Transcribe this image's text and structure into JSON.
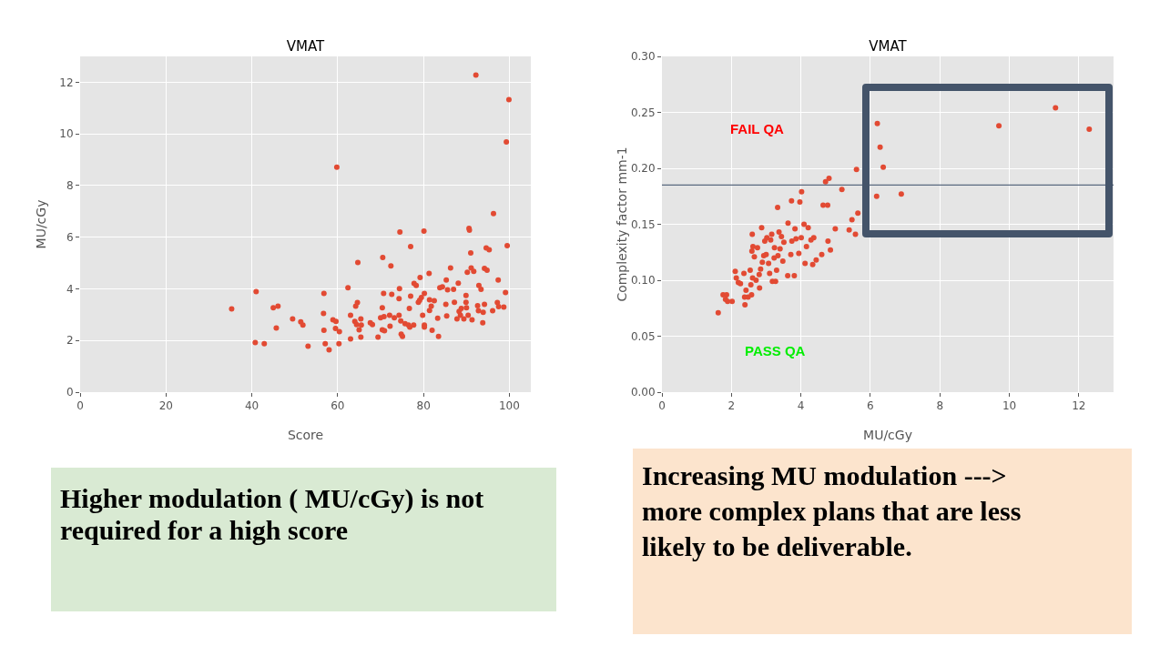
{
  "chart_data": [
    {
      "type": "scatter",
      "title": "VMAT",
      "xlabel": "Score",
      "ylabel": "MU/cGy",
      "marker": "circle",
      "grid": true,
      "xlim": [
        0,
        105
      ],
      "xticks": [
        0,
        20,
        40,
        60,
        80,
        100
      ],
      "ylim": [
        0,
        13
      ],
      "yticks": [
        0,
        2,
        4,
        6,
        8,
        10,
        12
      ],
      "series": [
        {
          "color": "#e24a33",
          "x": [
            35.3,
            41.0,
            40.8,
            42.9,
            45.0,
            46.1,
            45.7,
            49.5,
            51.4,
            51.9,
            53.1,
            56.8,
            56.7,
            56.8,
            57.1,
            58.0,
            58.9,
            59.6,
            59.5,
            60.4,
            60.3,
            59.8,
            62.4,
            63.0,
            63.0,
            64.2,
            64.6,
            64.7,
            64.0,
            64.4,
            65.0,
            65.4,
            65.5,
            65.4,
            67.6,
            68.1,
            69.4,
            70.0,
            70.4,
            70.8,
            70.7,
            70.5,
            70.4,
            70.9,
            72.1,
            72.2,
            72.4,
            72.6,
            73.2,
            74.3,
            74.3,
            74.4,
            74.5,
            74.8,
            75.1,
            74.7,
            75.7,
            76.5,
            76.7,
            76.8,
            77.0,
            77.0,
            77.7,
            77.8,
            78.3,
            78.8,
            79.2,
            79.1,
            79.5,
            79.8,
            80.1,
            80.2,
            80.2,
            80.2,
            81.3,
            81.4,
            81.4,
            81.8,
            82.0,
            82.5,
            83.3,
            83.5,
            83.8,
            84.4,
            85.3,
            85.4,
            85.6,
            85.2,
            86.3,
            87.0,
            87.2,
            87.8,
            88.1,
            88.3,
            88.6,
            88.8,
            89.4,
            89.9,
            89.9,
            90.0,
            90.2,
            90.4,
            90.7,
            90.6,
            91.0,
            91.1,
            91.3,
            91.7,
            92.6,
            92.2,
            92.8,
            92.9,
            93.4,
            93.8,
            93.9,
            94.2,
            94.2,
            94.8,
            94.6,
            95.3,
            96.1,
            96.3,
            97.2,
            97.4,
            97.5,
            98.7,
            99.1,
            99.3,
            99.5,
            99.9
          ],
          "values": [
            3.22,
            3.89,
            1.92,
            1.88,
            3.27,
            3.33,
            2.48,
            2.84,
            2.72,
            2.6,
            1.78,
            3.82,
            3.05,
            2.4,
            1.88,
            1.64,
            2.8,
            2.74,
            2.47,
            2.34,
            1.88,
            8.71,
            4.04,
            2.98,
            2.06,
            3.33,
            3.47,
            5.02,
            2.74,
            2.62,
            2.41,
            2.84,
            2.6,
            2.13,
            2.69,
            2.62,
            2.13,
            2.88,
            3.27,
            2.92,
            3.82,
            5.21,
            2.41,
            2.38,
            2.98,
            2.55,
            4.89,
            3.79,
            2.88,
            2.98,
            3.62,
            4.01,
            6.2,
            2.25,
            2.16,
            2.76,
            2.65,
            2.6,
            3.24,
            2.52,
            5.64,
            3.72,
            2.6,
            4.21,
            4.13,
            3.48,
            4.44,
            3.56,
            3.66,
            2.98,
            6.24,
            3.82,
            2.6,
            2.52,
            4.6,
            3.58,
            3.16,
            3.33,
            2.4,
            3.54,
            2.86,
            2.16,
            4.04,
            4.08,
            4.34,
            2.95,
            3.96,
            3.4,
            4.81,
            3.98,
            3.48,
            2.84,
            4.22,
            3.13,
            2.98,
            3.24,
            2.84,
            3.74,
            3.48,
            3.27,
            4.64,
            2.98,
            6.27,
            6.34,
            5.39,
            4.81,
            2.8,
            4.68,
            3.35,
            12.28,
            3.15,
            4.13,
            3.98,
            2.69,
            3.09,
            3.4,
            4.79,
            4.72,
            5.58,
            5.51,
            3.15,
            6.91,
            3.47,
            4.34,
            3.31,
            3.29,
            3.86,
            9.69,
            5.67,
            11.33
          ]
        }
      ]
    },
    {
      "type": "scatter",
      "title": "VMAT",
      "xlabel": "MU/cGy",
      "ylabel": "Complexity factor mm-1",
      "marker": "circle",
      "grid": true,
      "xlim": [
        0,
        13
      ],
      "xticks": [
        0,
        2,
        4,
        6,
        8,
        10,
        12
      ],
      "ylim": [
        0,
        0.3
      ],
      "yticks": [
        {
          "value": 0,
          "label": "0.00"
        },
        {
          "value": 0.05,
          "label": "0.05"
        },
        {
          "value": 0.1,
          "label": "0.10"
        },
        {
          "value": 0.15,
          "label": "0.15"
        },
        {
          "value": 0.2,
          "label": "0.20"
        },
        {
          "value": 0.25,
          "label": "0.25"
        },
        {
          "value": 0.3,
          "label": "0.30"
        }
      ],
      "annotations": [
        "FAIL QA",
        "PASS QA"
      ],
      "ref_lines": [
        {
          "axis": "y",
          "value": 0.185,
          "color": "#5a6a80"
        }
      ],
      "series": [
        {
          "color": "#e24a33",
          "x": [
            1.62,
            1.76,
            1.86,
            1.83,
            1.89,
            2.02,
            2.11,
            2.14,
            2.2,
            2.26,
            2.36,
            2.39,
            2.38,
            2.42,
            2.48,
            2.54,
            2.56,
            2.58,
            2.61,
            2.6,
            2.62,
            2.59,
            2.66,
            2.71,
            2.75,
            2.8,
            2.81,
            2.87,
            2.84,
            2.89,
            2.93,
            2.96,
            3.0,
            3.02,
            3.07,
            3.1,
            3.13,
            3.16,
            3.18,
            3.23,
            3.24,
            3.27,
            3.3,
            3.33,
            3.34,
            3.37,
            3.4,
            3.44,
            3.48,
            3.51,
            3.63,
            3.62,
            3.71,
            3.73,
            3.74,
            3.81,
            3.83,
            3.86,
            3.94,
            3.97,
            4.02,
            4.01,
            4.09,
            4.12,
            4.16,
            4.21,
            4.29,
            4.34,
            4.37,
            4.44,
            4.6,
            4.64,
            4.71,
            4.77,
            4.78,
            4.81,
            4.85,
            4.99,
            5.18,
            5.39,
            5.47,
            5.57,
            5.6,
            5.64,
            6.18,
            6.2,
            6.28,
            6.37,
            6.89,
            9.7,
            11.33,
            12.3
          ],
          "values": [
            0.071,
            0.087,
            0.087,
            0.083,
            0.081,
            0.081,
            0.108,
            0.102,
            0.098,
            0.097,
            0.106,
            0.078,
            0.085,
            0.091,
            0.085,
            0.109,
            0.096,
            0.087,
            0.102,
            0.141,
            0.13,
            0.126,
            0.121,
            0.1,
            0.129,
            0.105,
            0.093,
            0.147,
            0.11,
            0.116,
            0.122,
            0.135,
            0.123,
            0.138,
            0.115,
            0.106,
            0.136,
            0.141,
            0.099,
            0.12,
            0.129,
            0.099,
            0.109,
            0.165,
            0.122,
            0.143,
            0.128,
            0.139,
            0.117,
            0.134,
            0.151,
            0.104,
            0.123,
            0.171,
            0.135,
            0.104,
            0.146,
            0.137,
            0.124,
            0.17,
            0.179,
            0.138,
            0.15,
            0.115,
            0.13,
            0.147,
            0.136,
            0.114,
            0.138,
            0.118,
            0.123,
            0.167,
            0.188,
            0.167,
            0.135,
            0.191,
            0.127,
            0.146,
            0.181,
            0.145,
            0.154,
            0.141,
            0.199,
            0.16,
            0.175,
            0.24,
            0.219,
            0.201,
            0.177,
            0.238,
            0.254,
            0.235
          ]
        }
      ]
    },
    {
      "type": "other",
      "annotations": [
        "Higher modulation ( MU/cGy) is not required for a high score"
      ]
    },
    {
      "type": "other",
      "annotations": [
        "Increasing MU modulation ---> more complex plans that are less likely to be deliverable."
      ]
    }
  ]
}
